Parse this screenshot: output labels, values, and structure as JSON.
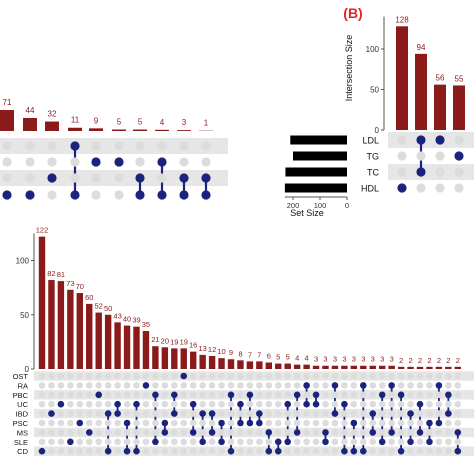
{
  "colors": {
    "bar": "#8b1a1a",
    "label": "#8b1a1a",
    "dot_on": "#1a237e",
    "dot_off": "#dcdcdc",
    "row_band": "#e6e6e6",
    "panel_letter": "#e0262a",
    "set_bar": "#000000",
    "axis": "#555555"
  },
  "chart_data": [
    {
      "type": "bar",
      "panel": "A-top (partial, cropped)",
      "values": [
        71,
        44,
        32,
        11,
        9,
        5,
        5,
        4,
        3,
        1
      ],
      "membership": [
        [
          3
        ],
        [
          3
        ],
        [
          2
        ],
        [
          0,
          3
        ],
        [
          1
        ],
        [
          1
        ],
        [
          2,
          3
        ],
        [
          1,
          3
        ],
        [
          2,
          3
        ],
        [
          2,
          3
        ]
      ]
    },
    {
      "type": "bar",
      "panel": "B",
      "panel_letter": "(B)",
      "ylabel": "Intersection Size",
      "yticks": [
        0,
        50,
        100
      ],
      "ylim": [
        0,
        140
      ],
      "values": [
        128,
        94,
        56,
        55
      ],
      "sets": [
        "LDL",
        "TG",
        "TC",
        "HDL"
      ],
      "membership": [
        [
          3
        ],
        [
          0,
          2
        ],
        [
          0
        ],
        [
          1
        ]
      ],
      "set_size_label": "Set Size",
      "set_size_ticks": [
        200,
        100,
        0
      ],
      "set_sizes": [
        210,
        200,
        228,
        230
      ]
    },
    {
      "type": "bar",
      "panel": "A-bottom",
      "yticks": [
        0,
        50,
        100
      ],
      "ylim": [
        0,
        125
      ],
      "sets": [
        "OST",
        "RA",
        "PBC",
        "UC",
        "IBD",
        "PSC",
        "MS",
        "SLE",
        "CD"
      ],
      "values": [
        122,
        82,
        81,
        73,
        70,
        60,
        52,
        50,
        43,
        40,
        39,
        35,
        21,
        20,
        19,
        19,
        16,
        13,
        12,
        10,
        9,
        8,
        7,
        7,
        6,
        5,
        5,
        4,
        4,
        3,
        3,
        3,
        3,
        3,
        3,
        3,
        3,
        3,
        2,
        2,
        2,
        2,
        2,
        2,
        2
      ],
      "value_labels": [
        "122",
        "82",
        "81",
        "73",
        "70",
        "60",
        "52",
        "50",
        "43",
        "40",
        "39",
        "35",
        "21",
        "20",
        "19",
        "19",
        "16",
        "13",
        "12",
        "10",
        "9",
        "8",
        "7",
        "7",
        "6",
        "5",
        "5",
        "4",
        "4",
        "3",
        "3",
        "3",
        "3",
        "3",
        "3",
        "3",
        "3",
        "3",
        "2",
        "2",
        "2",
        "2",
        "2",
        "2",
        "2"
      ],
      "membership": [
        [
          8
        ],
        [
          4
        ],
        [
          3
        ],
        [
          7
        ],
        [
          5
        ],
        [
          6
        ],
        [
          2
        ],
        [
          4,
          8
        ],
        [
          3,
          4
        ],
        [
          5,
          8
        ],
        [
          3,
          8
        ],
        [
          1
        ],
        [
          2,
          7
        ],
        [
          5,
          6
        ],
        [
          2,
          4
        ],
        [
          0
        ],
        [
          3,
          6
        ],
        [
          4,
          7
        ],
        [
          4,
          6
        ],
        [
          5,
          7
        ],
        [
          2,
          8
        ],
        [
          3,
          5
        ],
        [
          2,
          5
        ],
        [
          4,
          5
        ],
        [
          6,
          8
        ],
        [
          7,
          8
        ],
        [
          3,
          7
        ],
        [
          2,
          6
        ],
        [
          1,
          3
        ],
        [
          2,
          3
        ],
        [
          6,
          7
        ],
        [
          1,
          4
        ],
        [
          3,
          8
        ],
        [
          5,
          8
        ],
        [
          1,
          8
        ],
        [
          4,
          6
        ],
        [
          2,
          7
        ],
        [
          1,
          6
        ],
        [
          2,
          8
        ],
        [
          4,
          7
        ],
        [
          3,
          6
        ],
        [
          5,
          7
        ],
        [
          1,
          5
        ],
        [
          2,
          4
        ],
        [
          6,
          8
        ]
      ]
    }
  ]
}
